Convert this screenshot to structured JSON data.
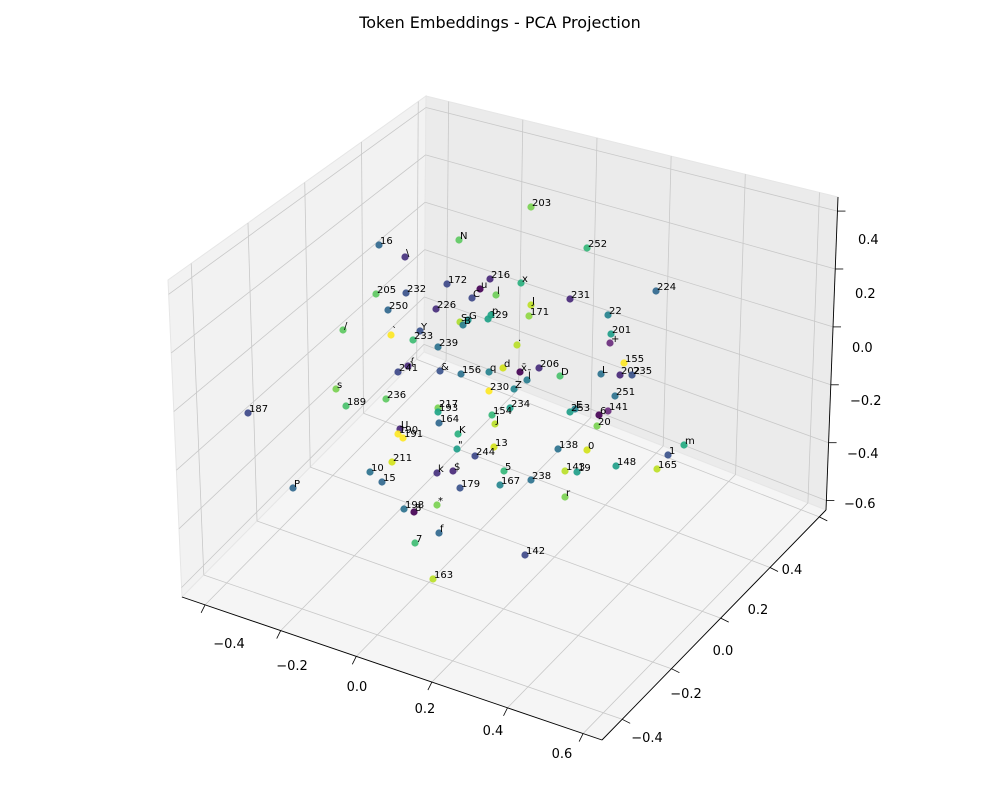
{
  "chart_data": {
    "type": "scatter",
    "projection": "3d",
    "title": "Token Embeddings - PCA Projection",
    "xlabel": "",
    "ylabel": "",
    "zlabel": "",
    "grid": true,
    "legend": "none",
    "colormap": "viridis",
    "x_ticks": [
      "−0.4",
      "−0.2",
      "0.0",
      "0.2",
      "0.4",
      "0.6"
    ],
    "y_ticks": [
      "−0.4",
      "−0.2",
      "0.0",
      "0.2",
      "0.4"
    ],
    "z_ticks": [
      "−0.6",
      "−0.4",
      "−0.2",
      "0.0",
      "0.2",
      "0.4"
    ],
    "points": [
      {
        "label": "203",
        "screen": [
          531,
          207
        ],
        "color": "#7ad151"
      },
      {
        "label": "N",
        "screen": [
          459,
          240
        ],
        "color": "#5ec962"
      },
      {
        "label": "16",
        "screen": [
          379,
          245
        ],
        "color": "#31688e"
      },
      {
        "label": "252",
        "screen": [
          587,
          248
        ],
        "color": "#35b779"
      },
      {
        "label": "\\",
        "screen": [
          405,
          257
        ],
        "color": "#46327e"
      },
      {
        "label": "x",
        "screen": [
          521,
          283
        ],
        "color": "#2ab07f"
      },
      {
        "label": "216",
        "screen": [
          490,
          279
        ],
        "color": "#482878"
      },
      {
        "label": "172",
        "screen": [
          447,
          284
        ],
        "color": "#3e4989"
      },
      {
        "label": "u",
        "screen": [
          480,
          289
        ],
        "color": "#440154"
      },
      {
        "label": "224",
        "screen": [
          656,
          291
        ],
        "color": "#31688e"
      },
      {
        "label": "205",
        "screen": [
          376,
          294
        ],
        "color": "#5ec962"
      },
      {
        "label": "232",
        "screen": [
          406,
          293
        ],
        "color": "#3b528b"
      },
      {
        "label": "l",
        "screen": [
          496,
          295
        ],
        "color": "#6ece58"
      },
      {
        "label": "C",
        "screen": [
          472,
          298
        ],
        "color": "#3e4989"
      },
      {
        "label": "231",
        "screen": [
          570,
          299
        ],
        "color": "#482878"
      },
      {
        "label": "J",
        "screen": [
          531,
          305
        ],
        "color": "#bddf26"
      },
      {
        "label": "250",
        "screen": [
          388,
          310
        ],
        "color": "#31688e"
      },
      {
        "label": "226",
        "screen": [
          436,
          309
        ],
        "color": "#472d7b"
      },
      {
        "label": "22",
        "screen": [
          608,
          315
        ],
        "color": "#26828e"
      },
      {
        "label": "171",
        "screen": [
          529,
          316
        ],
        "color": "#90d743"
      },
      {
        "label": "129",
        "screen": [
          488,
          319
        ],
        "color": "#1fa187"
      },
      {
        "label": "p",
        "screen": [
          491,
          315
        ],
        "color": "#20a486"
      },
      {
        "label": "S",
        "screen": [
          460,
          322
        ],
        "color": "#addc30"
      },
      {
        "label": "G",
        "screen": [
          468,
          320
        ],
        "color": "#21918c"
      },
      {
        "label": "B",
        "screen": [
          463,
          325
        ],
        "color": "#287c8e"
      },
      {
        "label": "/",
        "screen": [
          343,
          330
        ],
        "color": "#5ec962"
      },
      {
        "label": "Y",
        "screen": [
          420,
          331
        ],
        "color": "#3b528b"
      },
      {
        "label": "`",
        "screen": [
          391,
          335
        ],
        "color": "#fde725"
      },
      {
        "label": "201",
        "screen": [
          611,
          334
        ],
        "color": "#1f9e89"
      },
      {
        "label": "233",
        "screen": [
          413,
          340
        ],
        "color": "#3fbc73"
      },
      {
        "label": "+",
        "screen": [
          610,
          343
        ],
        "color": "#6a2c7d"
      },
      {
        "label": "·",
        "screen": [
          517,
          345
        ],
        "color": "#b8de29"
      },
      {
        "label": "239",
        "screen": [
          438,
          347
        ],
        "color": "#2c728e"
      },
      {
        "label": "155",
        "screen": [
          624,
          363
        ],
        "color": "#fde725"
      },
      {
        "label": "{",
        "screen": [
          408,
          366
        ],
        "color": "#482878"
      },
      {
        "label": "206",
        "screen": [
          539,
          368
        ],
        "color": "#472d7b"
      },
      {
        "label": "d",
        "screen": [
          503,
          368
        ],
        "color": "#d0e11c"
      },
      {
        "label": "x̄",
        "screen": [
          520,
          372
        ],
        "color": "#440154"
      },
      {
        "label": "241",
        "screen": [
          398,
          372
        ],
        "color": "#3e4989"
      },
      {
        "label": "&",
        "screen": [
          440,
          371
        ],
        "color": "#3b528b"
      },
      {
        "label": "q",
        "screen": [
          489,
          372
        ],
        "color": "#26828e"
      },
      {
        "label": "156",
        "screen": [
          461,
          374
        ],
        "color": "#2c728e"
      },
      {
        "label": "D",
        "screen": [
          560,
          376
        ],
        "color": "#4ac16d"
      },
      {
        "label": "L",
        "screen": [
          601,
          374
        ],
        "color": "#2c728e"
      },
      {
        "label": "202",
        "screen": [
          620,
          375
        ],
        "color": "#482878"
      },
      {
        "label": "235",
        "screen": [
          632,
          375
        ],
        "color": "#3b528b"
      },
      {
        "label": "l̄",
        "screen": [
          527,
          380
        ],
        "color": "#287c8e"
      },
      {
        "label": "s",
        "screen": [
          336,
          389
        ],
        "color": "#7ad151"
      },
      {
        "label": "230",
        "screen": [
          489,
          391
        ],
        "color": "#fde725"
      },
      {
        "label": "Z",
        "screen": [
          514,
          389
        ],
        "color": "#25858e"
      },
      {
        "label": "251",
        "screen": [
          615,
          396
        ],
        "color": "#2c728e"
      },
      {
        "label": "236",
        "screen": [
          386,
          399
        ],
        "color": "#5ec962"
      },
      {
        "label": "189",
        "screen": [
          346,
          406
        ],
        "color": "#4ac16d"
      },
      {
        "label": "217",
        "screen": [
          438,
          408
        ],
        "color": "#7ad151"
      },
      {
        "label": "234",
        "screen": [
          510,
          408
        ],
        "color": "#1f9e89"
      },
      {
        "label": "E",
        "screen": [
          575,
          409
        ],
        "color": "#26828e"
      },
      {
        "label": "193",
        "screen": [
          438,
          412
        ],
        "color": "#20a486"
      },
      {
        "label": "187",
        "screen": [
          248,
          413
        ],
        "color": "#3e4989"
      },
      {
        "label": "253",
        "screen": [
          570,
          412
        ],
        "color": "#1f9e89"
      },
      {
        "label": "141",
        "screen": [
          608,
          411
        ],
        "color": "#6a2c7d"
      },
      {
        "label": "6",
        "screen": [
          599,
          415
        ],
        "color": "#440154"
      },
      {
        "label": "154",
        "screen": [
          492,
          415
        ],
        "color": "#35b779"
      },
      {
        "label": "164",
        "screen": [
          439,
          423
        ],
        "color": "#31688e"
      },
      {
        "label": "J̄",
        "screen": [
          495,
          424
        ],
        "color": "#b8de29"
      },
      {
        "label": "20",
        "screen": [
          597,
          426
        ],
        "color": "#7ad151"
      },
      {
        "label": "U",
        "screen": [
          400,
          429
        ],
        "color": "#482878"
      },
      {
        "label": "190",
        "screen": [
          398,
          434
        ],
        "color": "#fde725"
      },
      {
        "label": "191",
        "screen": [
          403,
          438
        ],
        "color": "#fde725"
      },
      {
        "label": "K",
        "screen": [
          458,
          434
        ],
        "color": "#2ab07f"
      },
      {
        "label": "\"",
        "screen": [
          457,
          449
        ],
        "color": "#1f9e89"
      },
      {
        "label": "13",
        "screen": [
          494,
          447
        ],
        "color": "#d2e21b"
      },
      {
        "label": "138",
        "screen": [
          558,
          449
        ],
        "color": "#2c728e"
      },
      {
        "label": "0",
        "screen": [
          587,
          450
        ],
        "color": "#d2e21b"
      },
      {
        "label": "m",
        "screen": [
          684,
          445
        ],
        "color": "#25ab82"
      },
      {
        "label": "244",
        "screen": [
          475,
          456
        ],
        "color": "#3e4989"
      },
      {
        "label": "1",
        "screen": [
          668,
          455
        ],
        "color": "#3b528b"
      },
      {
        "label": "211",
        "screen": [
          392,
          462
        ],
        "color": "#d2e21b"
      },
      {
        "label": "148",
        "screen": [
          616,
          466
        ],
        "color": "#1f9e89"
      },
      {
        "label": "165",
        "screen": [
          657,
          469
        ],
        "color": "#bddf26"
      },
      {
        "label": "143",
        "screen": [
          565,
          471
        ],
        "color": "#b8de29"
      },
      {
        "label": "19",
        "screen": [
          577,
          472
        ],
        "color": "#1f9e89"
      },
      {
        "label": "5",
        "screen": [
          504,
          471
        ],
        "color": "#35b779"
      },
      {
        "label": "10",
        "screen": [
          370,
          472
        ],
        "color": "#2c728e"
      },
      {
        "label": "k",
        "screen": [
          437,
          473
        ],
        "color": "#46327e"
      },
      {
        "label": "$",
        "screen": [
          453,
          471
        ],
        "color": "#482878"
      },
      {
        "label": "15",
        "screen": [
          382,
          482
        ],
        "color": "#31688e"
      },
      {
        "label": "238",
        "screen": [
          531,
          480
        ],
        "color": "#2c728e"
      },
      {
        "label": "167",
        "screen": [
          500,
          485
        ],
        "color": "#25858e"
      },
      {
        "label": "179",
        "screen": [
          460,
          488
        ],
        "color": "#3b528b"
      },
      {
        "label": "P",
        "screen": [
          293,
          488
        ],
        "color": "#31688e"
      },
      {
        "label": "r",
        "screen": [
          565,
          497
        ],
        "color": "#7ad151"
      },
      {
        "label": "*",
        "screen": [
          437,
          505
        ],
        "color": "#7ad151"
      },
      {
        "label": "198",
        "screen": [
          404,
          509
        ],
        "color": "#2c728e"
      },
      {
        "label": "8",
        "screen": [
          414,
          512
        ],
        "color": "#440154"
      },
      {
        "label": "f",
        "screen": [
          439,
          533
        ],
        "color": "#31688e"
      },
      {
        "label": "7",
        "screen": [
          415,
          543
        ],
        "color": "#3fbc73"
      },
      {
        "label": "142",
        "screen": [
          525,
          555
        ],
        "color": "#3e4989"
      },
      {
        "label": "163",
        "screen": [
          433,
          579
        ],
        "color": "#b8de29"
      }
    ]
  }
}
